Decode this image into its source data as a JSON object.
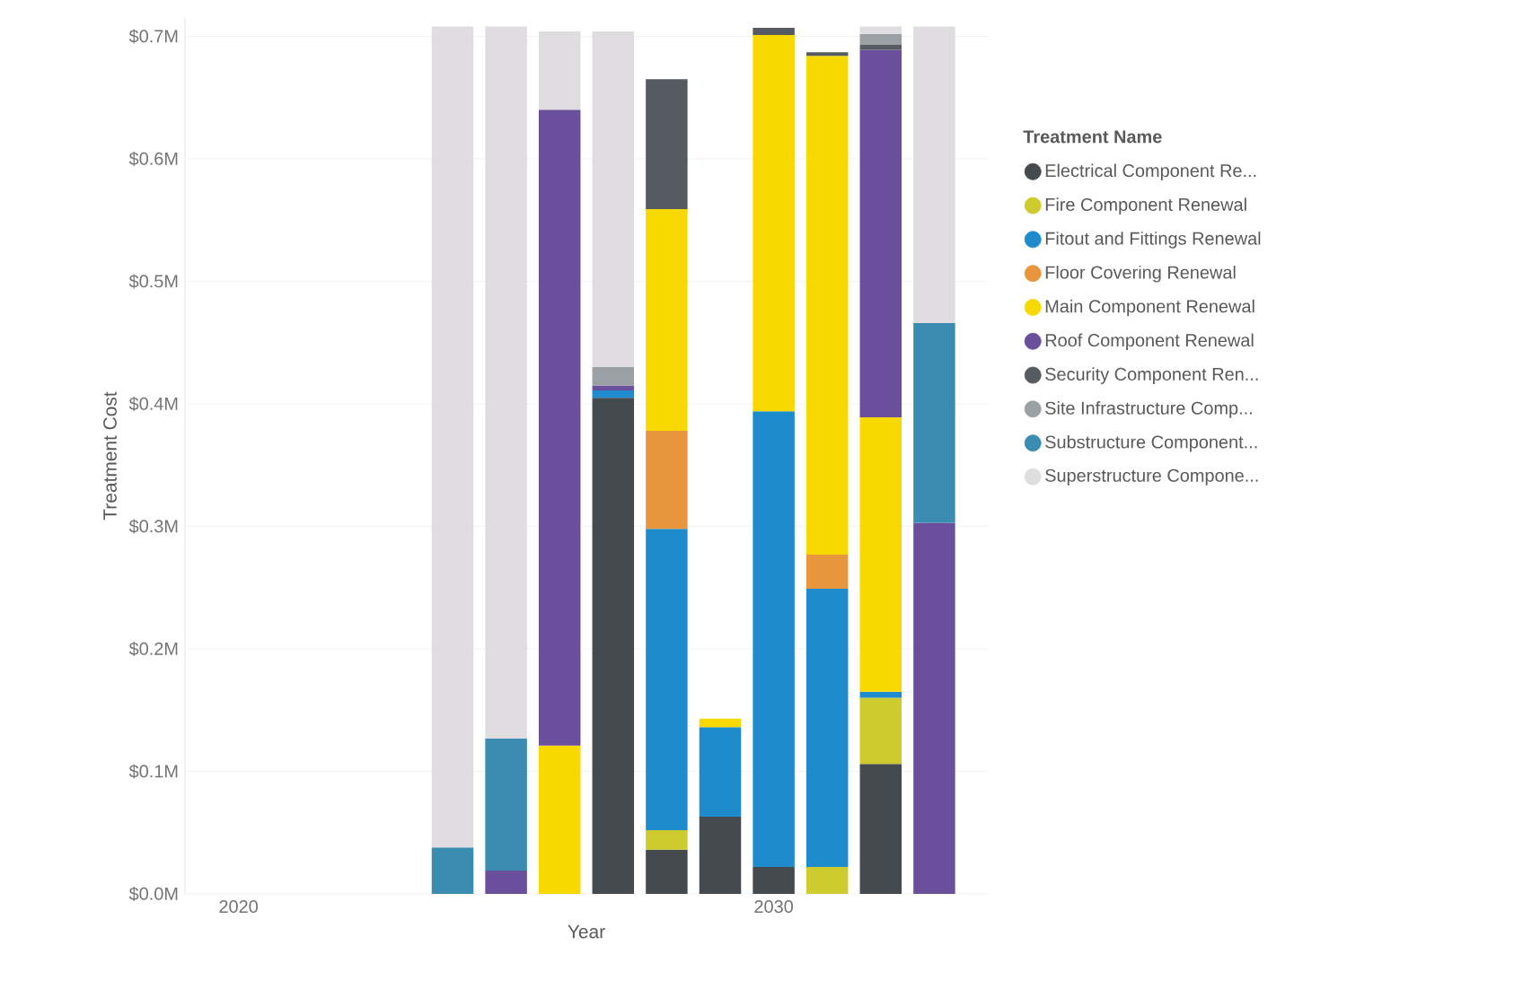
{
  "chart_data": {
    "type": "bar",
    "stacked": true,
    "xlabel": "Year",
    "ylabel": "Treatment Cost",
    "legend_title": "Treatment Name",
    "legend": "right",
    "grid": "y",
    "x": [
      2024,
      2025,
      2026,
      2027,
      2028,
      2029,
      2030,
      2031,
      2032,
      2033
    ],
    "xlim": [
      2019,
      2034
    ],
    "xticks": [
      2020,
      2030
    ],
    "ylim": [
      0,
      0.715
    ],
    "yticks": [
      {
        "value": 0,
        "label": "$0.0M"
      },
      {
        "value": 0.1,
        "label": "$0.1M"
      },
      {
        "value": 0.2,
        "label": "$0.2M"
      },
      {
        "value": 0.3,
        "label": "$0.3M"
      },
      {
        "value": 0.4,
        "label": "$0.4M"
      },
      {
        "value": 0.5,
        "label": "$0.5M"
      },
      {
        "value": 0.6,
        "label": "$0.6M"
      },
      {
        "value": 0.7,
        "label": "$0.7M"
      }
    ],
    "series": [
      {
        "name": "Electrical Component Re...",
        "color": "#454a4f",
        "values": [
          null,
          null,
          null,
          0.405,
          0.036,
          0.063,
          0.022,
          null,
          0.106,
          null
        ]
      },
      {
        "name": "Fire Component Renewal",
        "color": "#cdcb2e",
        "values": [
          null,
          null,
          null,
          null,
          0.016,
          null,
          null,
          0.022,
          0.054,
          null
        ]
      },
      {
        "name": "Fitout and Fittings Renewal",
        "color": "#1e8ccc",
        "values": [
          null,
          null,
          null,
          0.006,
          0.246,
          0.073,
          0.372,
          0.227,
          0.005,
          null
        ]
      },
      {
        "name": "Floor Covering Renewal",
        "color": "#e8963c",
        "values": [
          null,
          null,
          null,
          null,
          0.08,
          null,
          null,
          0.028,
          null,
          null
        ]
      },
      {
        "name": "Main Component Renewal",
        "color": "#f7d900",
        "values": [
          null,
          null,
          0.121,
          null,
          0.181,
          0.007,
          0.307,
          0.407,
          0.224,
          null
        ]
      },
      {
        "name": "Roof Component Renewal",
        "color": "#6a4f9c",
        "values": [
          null,
          0.019,
          0.519,
          0.004,
          null,
          null,
          null,
          null,
          0.3,
          0.303
        ]
      },
      {
        "name": "Security Component Ren...",
        "color": "#555b60",
        "values": [
          null,
          null,
          null,
          null,
          0.106,
          null,
          0.006,
          0.003,
          0.004,
          null
        ]
      },
      {
        "name": "Site Infrastructure Comp...",
        "color": "#9aa0a3",
        "values": [
          null,
          null,
          null,
          0.015,
          null,
          null,
          null,
          null,
          0.009,
          null
        ]
      },
      {
        "name": "Substructure Component...",
        "color": "#3a8cb0",
        "values": [
          0.038,
          0.108,
          null,
          null,
          null,
          null,
          null,
          null,
          null,
          0.163
        ]
      },
      {
        "name": "Superstructure Compone...",
        "color": "#e0dde0",
        "values": [
          0.67,
          0.581,
          0.064,
          0.274,
          null,
          null,
          null,
          null,
          0.006,
          0.242
        ]
      }
    ]
  }
}
